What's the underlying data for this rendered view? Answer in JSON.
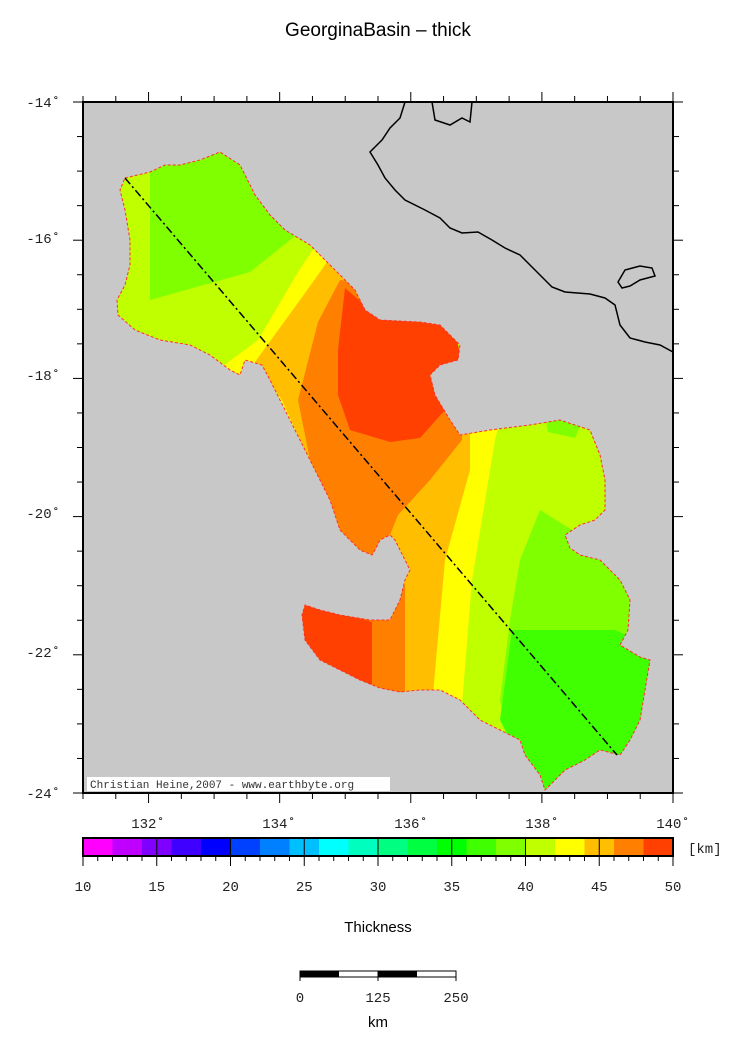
{
  "title": "GeorginaBasin – thick",
  "credit": "Christian Heine,2007 - www.earthbyte.org",
  "map": {
    "lon_range": [
      131,
      140
    ],
    "lat_range": [
      -24,
      -14
    ],
    "lon_ticks": [
      "132˚",
      "134˚",
      "136˚",
      "138˚",
      "140˚"
    ],
    "lat_ticks": [
      "-14˚",
      "-16˚",
      "-18˚",
      "-20˚",
      "-22˚",
      "-24˚"
    ],
    "background_color": "#c8c8c8",
    "profile_line": {
      "style": "dash-dot",
      "from": [
        131.65,
        -15.1
      ],
      "to": [
        139.15,
        -23.45
      ]
    },
    "outline_color": "#ff3030"
  },
  "colorbar": {
    "unit": "[km]",
    "label": "Thickness",
    "ticks": [
      "10",
      "15",
      "20",
      "25",
      "30",
      "35",
      "40",
      "45",
      "50"
    ],
    "range": [
      10,
      50
    ],
    "step": 2,
    "colors": [
      "#ff00ff",
      "#bf00ff",
      "#8000ff",
      "#4000ff",
      "#0000ff",
      "#0040ff",
      "#0080ff",
      "#00bfff",
      "#00ffff",
      "#00ffbf",
      "#00ff80",
      "#00ff40",
      "#00ff00",
      "#40ff00",
      "#80ff00",
      "#bfff00",
      "#ffff00",
      "#ffbf00",
      "#ff8000",
      "#ff4000"
    ]
  },
  "scalebar": {
    "ticks": [
      "0",
      "125",
      "250"
    ],
    "unit": "km"
  }
}
